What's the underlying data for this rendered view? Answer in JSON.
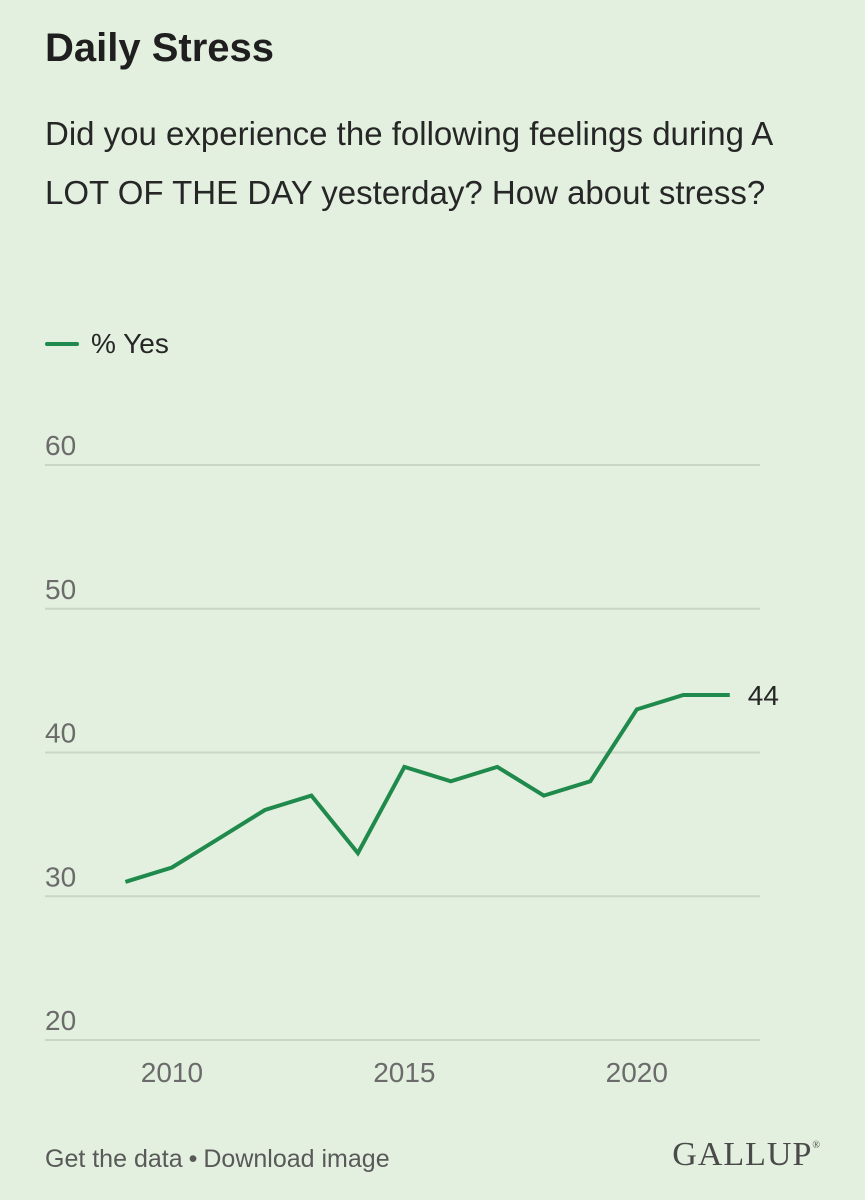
{
  "header": {
    "title": "Daily Stress",
    "subtitle": "Did you experience the following feelings during A LOT OF THE DAY yesterday? How about stress?"
  },
  "legend": {
    "series_label": "% Yes"
  },
  "chart_data": {
    "type": "line",
    "title": "Daily Stress",
    "xlabel": "",
    "ylabel": "",
    "xlim": [
      2007.27,
      2022.65
    ],
    "ylim": [
      20,
      60
    ],
    "yticks": [
      20,
      30,
      40,
      50,
      60
    ],
    "xticks": [
      2010,
      2015,
      2020
    ],
    "grid": true,
    "legend_position": "top-left",
    "series": [
      {
        "name": "% Yes",
        "color": "#1f8a4c",
        "x": [
          2009,
          2010,
          2011,
          2012,
          2013,
          2014,
          2015,
          2016,
          2017,
          2018,
          2019,
          2020,
          2021,
          2022
        ],
        "values": [
          31,
          32,
          34,
          36,
          37,
          33,
          39,
          38,
          39,
          37,
          38,
          43,
          44,
          44
        ],
        "end_label": "44"
      }
    ]
  },
  "footer": {
    "get_data": "Get the data",
    "separator": "•",
    "download": "Download image",
    "brand": "GALLUP"
  },
  "colors": {
    "background": "#e3f0df",
    "line": "#1f8a4c",
    "grid": "#c9d6c6",
    "axis_text": "#6b6b6b"
  }
}
